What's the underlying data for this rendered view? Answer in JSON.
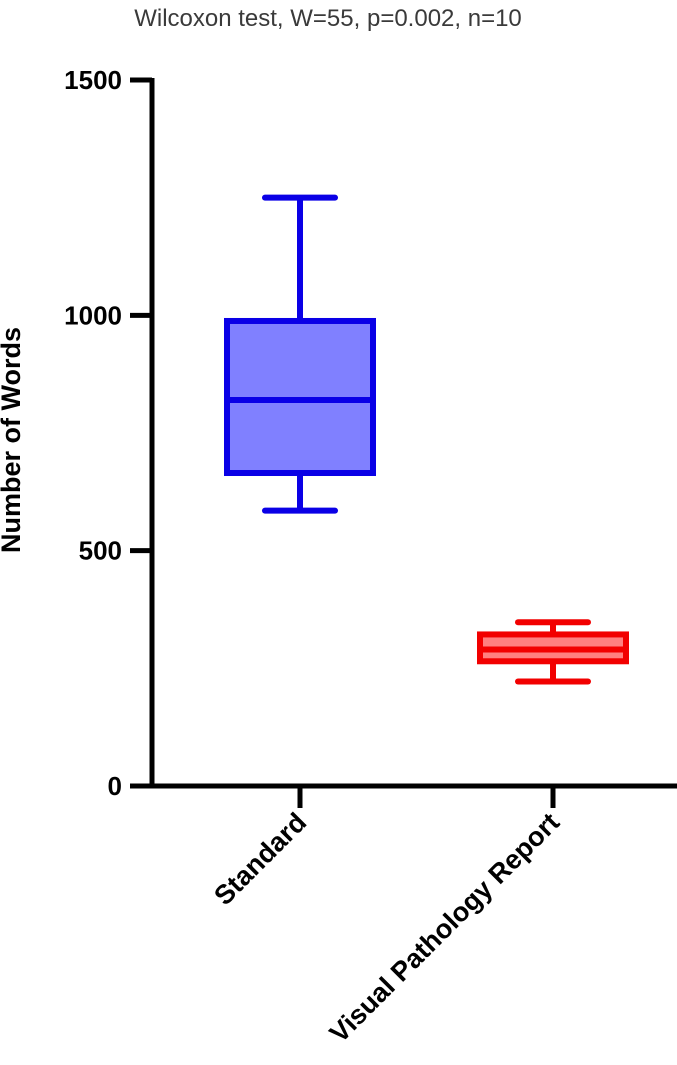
{
  "chart_data": {
    "type": "box",
    "title": "Wilcoxon test, W=55, p=0.002, n=10",
    "xlabel": "",
    "ylabel": "Number of Words",
    "ylim": [
      0,
      1500
    ],
    "yticks": [
      {
        "value": 0,
        "label": "0"
      },
      {
        "value": 500,
        "label": "500"
      },
      {
        "value": 1000,
        "label": "1000"
      },
      {
        "value": 1500,
        "label": "1500"
      }
    ],
    "grid": false,
    "categories": [
      "Standard",
      "Visual Pathology Report"
    ],
    "boxes": [
      {
        "category": "Standard",
        "min": 585,
        "q1": 665,
        "median": 820,
        "q3": 988,
        "max": 1250,
        "stroke": "#0a00e6",
        "fill": "#8080ff"
      },
      {
        "category": "Visual Pathology Report",
        "min": 222,
        "q1": 265,
        "median": 290,
        "q3": 322,
        "max": 348,
        "stroke": "#f20000",
        "fill": "#ff8080"
      }
    ]
  }
}
